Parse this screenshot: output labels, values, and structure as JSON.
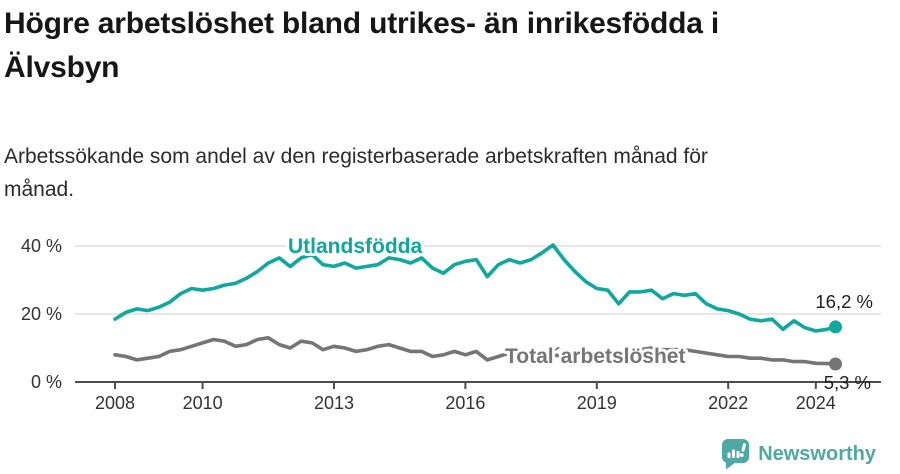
{
  "header": {
    "title": "Högre arbetslöshet bland utrikes- än inrikesfödda i\nÄlvsbyn",
    "subtitle": "Arbetssökande som andel av den registerbaserade arbetskraften månad för\nmånad."
  },
  "footer": {
    "brand": "Newsworthy"
  },
  "colors": {
    "accent_teal": "#10a79e",
    "series_gray": "#757575",
    "grid": "#dddddd",
    "axis": "#4d4d4d",
    "tick_text": "#333333",
    "brand_teal": "#4fa8a3"
  },
  "chart_data": {
    "type": "line",
    "title": "Högre arbetslöshet bland utrikes- än inrikesfödda i Älvsbyn",
    "subtitle": "Arbetssökande som andel av den registerbaserade arbetskraften månad för månad.",
    "ylabel": "",
    "xlabel": "",
    "grid": true,
    "y_axis": {
      "range": [
        0,
        42
      ],
      "ticks": [
        0,
        20,
        40
      ],
      "tick_labels": [
        "0 %",
        "20 %",
        "40 %"
      ]
    },
    "x_axis": {
      "range": [
        2007.6,
        2025.4
      ],
      "ticks": [
        2008,
        2010,
        2013,
        2016,
        2019,
        2022,
        2024
      ],
      "tick_labels": [
        "2008",
        "2010",
        "2013",
        "2016",
        "2019",
        "2022",
        "2024"
      ]
    },
    "x": [
      2008.0,
      2008.25,
      2008.5,
      2008.75,
      2009.0,
      2009.25,
      2009.5,
      2009.75,
      2010.0,
      2010.25,
      2010.5,
      2010.75,
      2011.0,
      2011.25,
      2011.5,
      2011.75,
      2012.0,
      2012.25,
      2012.5,
      2012.75,
      2013.0,
      2013.25,
      2013.5,
      2013.75,
      2014.0,
      2014.25,
      2014.5,
      2014.75,
      2015.0,
      2015.25,
      2015.5,
      2015.75,
      2016.0,
      2016.25,
      2016.5,
      2016.75,
      2017.0,
      2017.25,
      2017.5,
      2017.75,
      2018.0,
      2018.25,
      2018.5,
      2018.75,
      2019.0,
      2019.25,
      2019.5,
      2019.75,
      2020.0,
      2020.25,
      2020.5,
      2020.75,
      2021.0,
      2021.25,
      2021.5,
      2021.75,
      2022.0,
      2022.25,
      2022.5,
      2022.75,
      2023.0,
      2023.25,
      2023.5,
      2023.75,
      2024.0,
      2024.25,
      2024.45
    ],
    "series": [
      {
        "name": "Utlandsfödda",
        "color": "#10a79e",
        "end_label": "16,2 %",
        "end_value": 16.2,
        "values": [
          18.5,
          20.5,
          21.5,
          21.0,
          22.0,
          23.5,
          26.0,
          27.5,
          27.0,
          27.5,
          28.5,
          29.0,
          30.5,
          32.5,
          35.0,
          36.5,
          34.0,
          36.5,
          37.5,
          34.5,
          34.0,
          35.0,
          33.5,
          34.0,
          34.5,
          36.5,
          36.0,
          35.0,
          36.5,
          33.5,
          32.0,
          34.5,
          35.5,
          36.0,
          31.0,
          34.5,
          36.0,
          35.0,
          36.0,
          38.0,
          40.3,
          36.0,
          32.5,
          29.5,
          27.5,
          27.0,
          23.0,
          26.5,
          26.5,
          27.0,
          24.5,
          26.0,
          25.5,
          26.0,
          23.0,
          21.5,
          21.0,
          20.0,
          18.5,
          18.0,
          18.5,
          15.5,
          18.0,
          16.0,
          15.0,
          15.5,
          16.2
        ]
      },
      {
        "name": "Total´arbetslöshet",
        "color": "#757575",
        "end_label": "5,3 %",
        "end_value": 5.3,
        "values": [
          8.0,
          7.5,
          6.5,
          7.0,
          7.5,
          9.0,
          9.5,
          10.5,
          11.5,
          12.5,
          12.0,
          10.5,
          11.0,
          12.5,
          13.0,
          11.0,
          10.0,
          12.0,
          11.5,
          9.5,
          10.5,
          10.0,
          9.0,
          9.5,
          10.5,
          11.0,
          10.0,
          9.0,
          9.0,
          7.5,
          8.0,
          9.0,
          8.0,
          9.0,
          6.5,
          7.5,
          8.5,
          8.0,
          8.0,
          7.5,
          8.0,
          7.5,
          7.5,
          8.0,
          8.0,
          8.0,
          8.5,
          9.0,
          9.5,
          10.0,
          9.5,
          9.5,
          9.5,
          9.0,
          8.5,
          8.0,
          7.5,
          7.5,
          7.0,
          7.0,
          6.5,
          6.5,
          6.0,
          6.0,
          5.5,
          5.4,
          5.3
        ]
      }
    ],
    "legend_position": "inline-labels"
  }
}
